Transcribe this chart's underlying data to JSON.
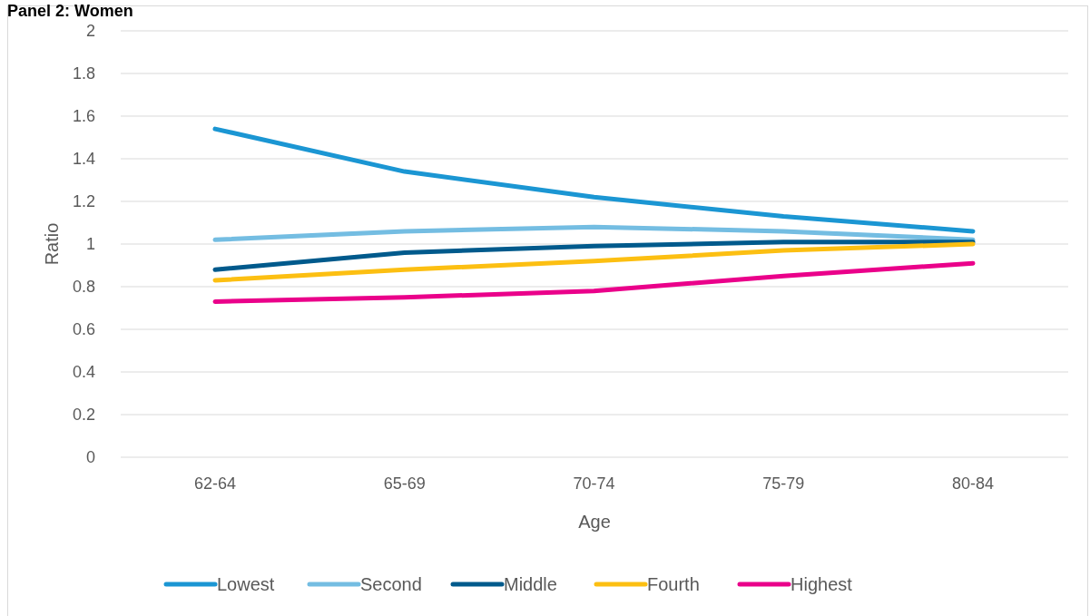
{
  "chart_data": {
    "type": "line",
    "title": "Panel 2: Women",
    "xlabel": "Age",
    "ylabel": "Ratio",
    "categories": [
      "62-64",
      "65-69",
      "70-74",
      "75-79",
      "80-84"
    ],
    "series": [
      {
        "name": "Lowest",
        "color": "#1b96d3",
        "values": [
          1.54,
          1.34,
          1.22,
          1.13,
          1.06
        ]
      },
      {
        "name": "Second",
        "color": "#74bde2",
        "values": [
          1.02,
          1.06,
          1.08,
          1.06,
          1.02
        ]
      },
      {
        "name": "Middle",
        "color": "#005a8c",
        "values": [
          0.88,
          0.96,
          0.99,
          1.01,
          1.01
        ]
      },
      {
        "name": "Fourth",
        "color": "#fcbf12",
        "values": [
          0.83,
          0.88,
          0.92,
          0.97,
          1.0
        ]
      },
      {
        "name": "Highest",
        "color": "#ea008a",
        "values": [
          0.73,
          0.75,
          0.78,
          0.85,
          0.91
        ]
      }
    ],
    "ylim": [
      0,
      2
    ],
    "yticks": [
      0,
      {
        "value": 0.2,
        "label": "0.2"
      },
      {
        "value": 0.4,
        "label": "0.4"
      },
      {
        "value": 0.6,
        "label": "0.6"
      },
      {
        "value": 0.8,
        "label": "0.8"
      },
      1,
      {
        "value": 1.2,
        "label": "1.2"
      },
      {
        "value": 1.4,
        "label": "1.4"
      },
      {
        "value": 1.6,
        "label": "1.6"
      },
      {
        "value": 1.8,
        "label": "1.8"
      },
      2
    ],
    "grid": "y",
    "legend": "bottom",
    "line_style": "solid",
    "marker": "none"
  }
}
